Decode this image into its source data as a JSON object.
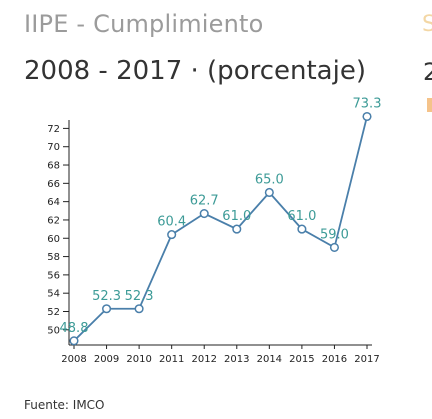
{
  "header": {
    "title": "IIPE - Cumplimiento",
    "subtitle": "2008 - 2017 · (porcentaje)"
  },
  "footer": {
    "source": "Fuente: IMCO"
  },
  "edge": {
    "title_glyph": "S",
    "subtitle_glyph": "2"
  },
  "chart_data": {
    "type": "line",
    "title": "",
    "xlabel": "",
    "ylabel": "",
    "x": [
      "2008",
      "2009",
      "2010",
      "2011",
      "2012",
      "2013",
      "2014",
      "2015",
      "2016",
      "2017"
    ],
    "series": [
      {
        "values": [
          48.8,
          52.3,
          52.3,
          60.4,
          62.7,
          61.0,
          65.0,
          61.0,
          59.0,
          73.3
        ],
        "labels": [
          "48.8",
          "52.3",
          "52.3",
          "60.4",
          "62.7",
          "61.0",
          "65.0",
          "61.0",
          "59.0",
          "73.3"
        ],
        "color": "#4a7faa",
        "label_color": "#3d9b97"
      }
    ],
    "yticks": [
      50,
      52,
      54,
      56,
      58,
      60,
      62,
      64,
      66,
      68,
      70,
      72
    ],
    "ylim": [
      48.8,
      73.3
    ],
    "grid": false,
    "legend": "none"
  }
}
